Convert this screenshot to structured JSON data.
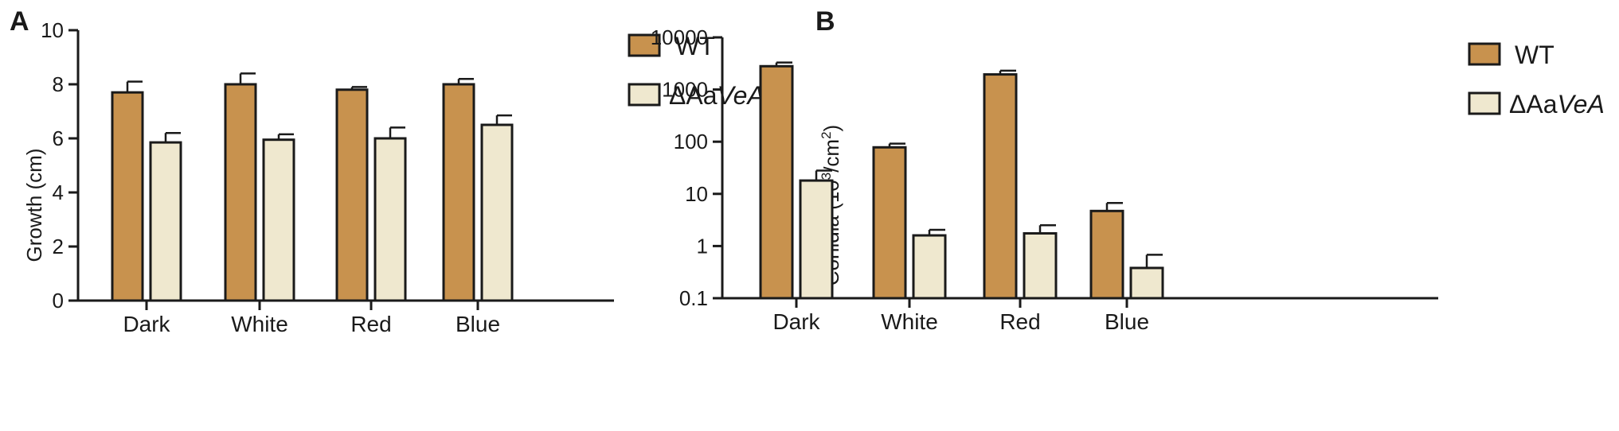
{
  "colors": {
    "wt": "#c8924e",
    "mutant": "#efe8cf"
  },
  "legend": {
    "wt": "WT",
    "mutant_prefix": "ΔAa",
    "mutant_italic": "VeA"
  },
  "chart_data": [
    {
      "panel": "A",
      "type": "bar",
      "ylabel": "Growth (cm)",
      "yscale": "linear",
      "ylim": [
        0,
        10
      ],
      "yticks": [
        0,
        2,
        4,
        6,
        8,
        10
      ],
      "ytick_labels": [
        "0",
        "2",
        "4",
        "6",
        "8",
        "10"
      ],
      "categories": [
        "Dark",
        "White",
        "Red",
        "Blue"
      ],
      "series": [
        {
          "name": "WT",
          "values": [
            7.7,
            8.0,
            7.8,
            8.0
          ],
          "errors": [
            0.4,
            0.4,
            0.1,
            0.2
          ]
        },
        {
          "name": "ΔAaVeA",
          "values": [
            5.85,
            5.95,
            6.0,
            6.5
          ],
          "errors": [
            0.35,
            0.2,
            0.4,
            0.35
          ]
        }
      ],
      "legend_position": "top-right"
    },
    {
      "panel": "B",
      "type": "bar",
      "ylabel_prefix": "Conidia (10",
      "ylabel_sup1": "3",
      "ylabel_mid": "/cm",
      "ylabel_sup2": "2",
      "ylabel_suffix": ")",
      "yscale": "log",
      "ylim": [
        0.1,
        10000
      ],
      "yticks": [
        0.1,
        1,
        10,
        100,
        1000,
        10000
      ],
      "ytick_labels": [
        "0.1",
        "1",
        "10",
        "100",
        "1000",
        "10000"
      ],
      "categories": [
        "Dark",
        "White",
        "Red",
        "Blue"
      ],
      "series": [
        {
          "name": "WT",
          "values": [
            2800,
            78,
            1950,
            4.7
          ],
          "errors": [
            500,
            14,
            350,
            2.0
          ]
        },
        {
          "name": "ΔAaVeA",
          "values": [
            18,
            1.6,
            1.75,
            0.38
          ],
          "errors": [
            10,
            0.45,
            0.75,
            0.3
          ]
        }
      ],
      "legend_position": "top-right"
    }
  ]
}
